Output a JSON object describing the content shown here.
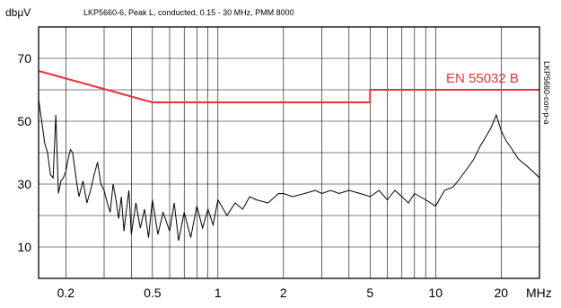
{
  "chart_data": {
    "type": "line",
    "title": "LKP5660-6, Peak L, conducted, 0.15 - 30 MHz, PMM 8000",
    "ylabel": "dbμV",
    "xlabel": "MHz",
    "side_label": "LKP5660-con-p-a",
    "x_scale": "log",
    "xlim": [
      0.15,
      30
    ],
    "ylim": [
      0,
      80
    ],
    "grid": true,
    "y_tick_labels": [
      {
        "value": 10,
        "label": "10"
      },
      {
        "value": 30,
        "label": "30"
      },
      {
        "value": 50,
        "label": "50"
      },
      {
        "value": 70,
        "label": "70"
      }
    ],
    "x_tick_labels": [
      {
        "value": 0.2,
        "label": "0.2"
      },
      {
        "value": 0.5,
        "label": "0.5"
      },
      {
        "value": 1,
        "label": "1"
      },
      {
        "value": 2,
        "label": "2"
      },
      {
        "value": 5,
        "label": "5"
      },
      {
        "value": 10,
        "label": "10"
      },
      {
        "value": 20,
        "label": "20"
      }
    ],
    "limit_line": {
      "name": "EN 55032 B",
      "color": "#e8333a",
      "x": [
        0.15,
        0.5,
        0.5,
        5,
        5,
        30
      ],
      "y": [
        66,
        56,
        56,
        56,
        60,
        60
      ]
    },
    "series": [
      {
        "color": "#000000",
        "x": [
          0.15,
          0.155,
          0.16,
          0.165,
          0.17,
          0.175,
          0.18,
          0.185,
          0.19,
          0.195,
          0.2,
          0.205,
          0.21,
          0.215,
          0.22,
          0.225,
          0.23,
          0.24,
          0.25,
          0.26,
          0.27,
          0.28,
          0.29,
          0.3,
          0.31,
          0.32,
          0.33,
          0.34,
          0.35,
          0.36,
          0.37,
          0.38,
          0.39,
          0.4,
          0.42,
          0.44,
          0.46,
          0.48,
          0.5,
          0.53,
          0.56,
          0.6,
          0.63,
          0.66,
          0.7,
          0.75,
          0.8,
          0.85,
          0.9,
          0.95,
          1.0,
          1.1,
          1.2,
          1.3,
          1.4,
          1.5,
          1.7,
          1.9,
          2.0,
          2.2,
          2.5,
          2.8,
          3.0,
          3.3,
          3.6,
          4.0,
          4.5,
          5.0,
          5.5,
          6.0,
          6.5,
          7.0,
          7.5,
          8.0,
          9.0,
          10,
          11,
          12,
          13,
          14,
          15,
          16,
          17,
          18,
          19,
          20,
          21,
          22,
          24,
          26,
          28,
          30
        ],
        "values": [
          57,
          50,
          43,
          40,
          33,
          32,
          52,
          27,
          31,
          32,
          34,
          38,
          41,
          40,
          35,
          30,
          26,
          31,
          24,
          28,
          33,
          37,
          30,
          28,
          24,
          21,
          30,
          25,
          19,
          26,
          15,
          22,
          28,
          14,
          24,
          16,
          22,
          13,
          25,
          14,
          21,
          15,
          24,
          12,
          21,
          13,
          23,
          16,
          22,
          17,
          25,
          20,
          24,
          22,
          26,
          25,
          24,
          27,
          27,
          26,
          27,
          28,
          27,
          28,
          27,
          28,
          27,
          26,
          28,
          25,
          28,
          26,
          24,
          27,
          25,
          23,
          28,
          29,
          32,
          35,
          38,
          42,
          45,
          48,
          52,
          47,
          44,
          42,
          38,
          36,
          34,
          32
        ]
      }
    ]
  }
}
